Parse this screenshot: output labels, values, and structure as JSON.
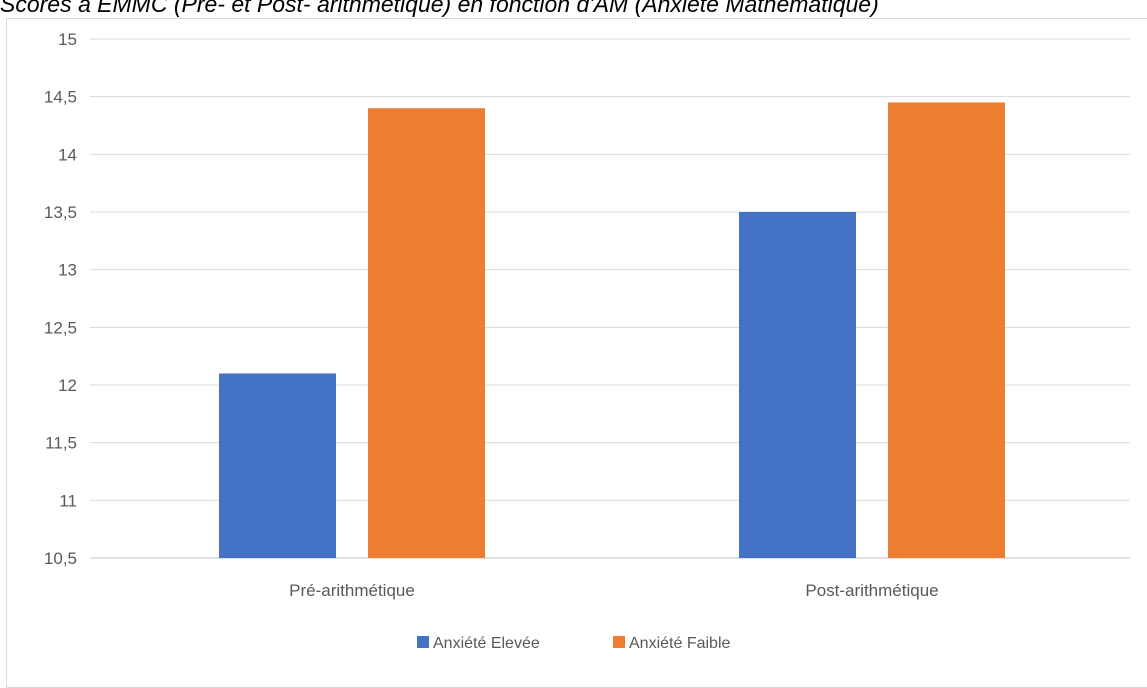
{
  "chart_data": {
    "type": "bar",
    "title": "Scores à EMMC (Pré- et Post- arithmétique) en fonction d'AM (Anxiété Mathématique)",
    "categories": [
      "Pré-arithmétique",
      "Post-arithmétique"
    ],
    "series": [
      {
        "name": "Anxiété Elevée",
        "values": [
          12.1,
          13.5
        ],
        "color": "#4472c4"
      },
      {
        "name": "Anxiété Faible",
        "values": [
          14.4,
          14.45
        ],
        "color": "#ed7d31"
      }
    ],
    "ylim": [
      10.5,
      15
    ],
    "yticks": [
      10.5,
      11,
      11.5,
      12,
      12.5,
      13,
      13.5,
      14,
      14.5,
      15
    ],
    "ytick_labels": [
      "10,5",
      "11",
      "11,5",
      "12",
      "12,5",
      "13",
      "13,5",
      "14",
      "14,5",
      "15"
    ],
    "grid": true,
    "legend_position": "bottom",
    "xlabel": "",
    "ylabel": ""
  }
}
